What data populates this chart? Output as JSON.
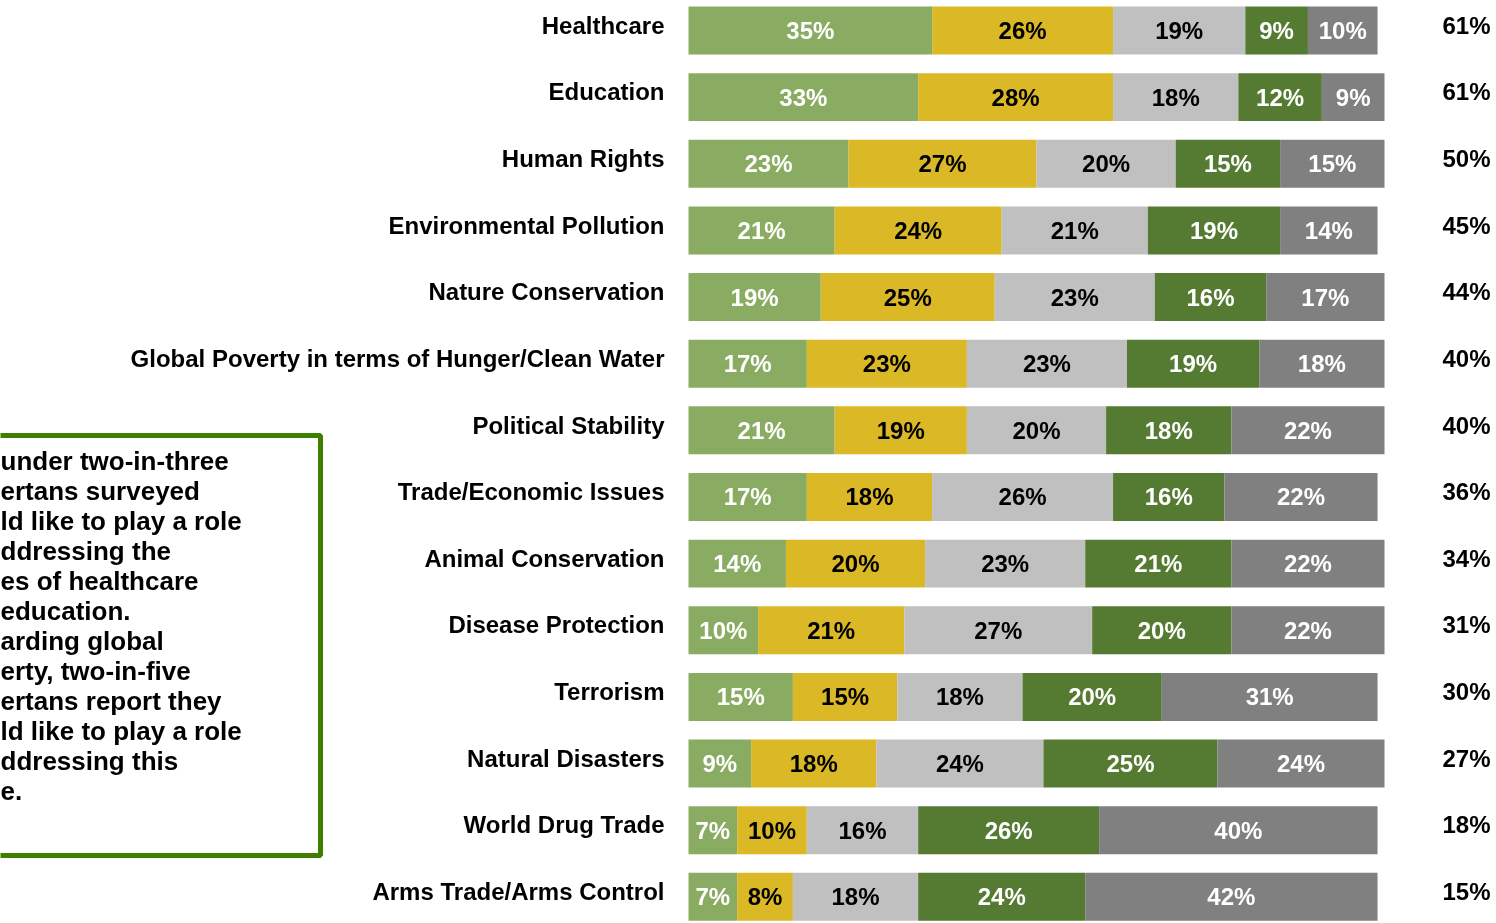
{
  "chart_data": {
    "type": "bar",
    "orientation": "horizontal",
    "stacked": true,
    "tick_labels": "y",
    "grid": false,
    "categories": [
      "Healthcare",
      "Education",
      "Human Rights",
      "Environmental Pollution",
      "Nature Conservation",
      "Global Poverty in terms of Hunger/Clean Water",
      "Political Stability",
      "Trade/Economic Issues",
      "Animal Conservation",
      "Disease Protection",
      "Terrorism",
      "Natural Disasters",
      "World Drug Trade",
      "Arms Trade/Arms Control"
    ],
    "series": [
      {
        "color": "#8aac62",
        "values": [
          35,
          33,
          23,
          21,
          19,
          17,
          21,
          17,
          14,
          10,
          15,
          9,
          7,
          7
        ],
        "value_labels": [
          "35%",
          "33%",
          "23%",
          "21%",
          "19%",
          "17%",
          "21%",
          "17%",
          "14%",
          "10%",
          "15%",
          "9%",
          "7%",
          "7%"
        ]
      },
      {
        "color": "#dbb825",
        "values": [
          26,
          28,
          27,
          24,
          25,
          23,
          19,
          18,
          20,
          21,
          15,
          18,
          10,
          8
        ],
        "value_labels": [
          "26%",
          "28%",
          "27%",
          "24%",
          "25%",
          "23%",
          "19%",
          "18%",
          "20%",
          "21%",
          "15%",
          "18%",
          "10%",
          "8%"
        ]
      },
      {
        "color": "#c0c0c0",
        "values": [
          19,
          18,
          20,
          21,
          23,
          23,
          20,
          26,
          23,
          27,
          18,
          24,
          16,
          18
        ],
        "value_labels": [
          "19%",
          "18%",
          "20%",
          "21%",
          "23%",
          "23%",
          "20%",
          "26%",
          "23%",
          "27%",
          "18%",
          "24%",
          "16%",
          "18%"
        ]
      },
      {
        "color": "#557a32",
        "values": [
          9,
          12,
          15,
          19,
          16,
          19,
          18,
          16,
          21,
          20,
          20,
          25,
          26,
          24
        ],
        "value_labels": [
          "9%",
          "12%",
          "15%",
          "19%",
          "16%",
          "19%",
          "18%",
          "16%",
          "21%",
          "20%",
          "20%",
          "25%",
          "26%",
          "24%"
        ]
      },
      {
        "color": "#808080",
        "values": [
          10,
          9,
          15,
          14,
          17,
          18,
          22,
          22,
          22,
          22,
          31,
          24,
          40,
          42
        ],
        "value_labels": [
          "10%",
          "9%",
          "15%",
          "14%",
          "17%",
          "18%",
          "22%",
          "22%",
          "22%",
          "22%",
          "31%",
          "24%",
          "40%",
          "42%"
        ]
      }
    ],
    "annotations": [
      "61%",
      "61%",
      "50%",
      "45%",
      "44%",
      "40%",
      "40%",
      "36%",
      "34%",
      "31%",
      "30%",
      "27%",
      "18%",
      "15%",
      "under two-in-three\nertans surveyed\nld like to play a role\nddressing the\nes of healthcare\neducation.\narding global\nerty, two-in-five\nertans report they\nld like to play a role\nddressing this\ne."
    ]
  }
}
